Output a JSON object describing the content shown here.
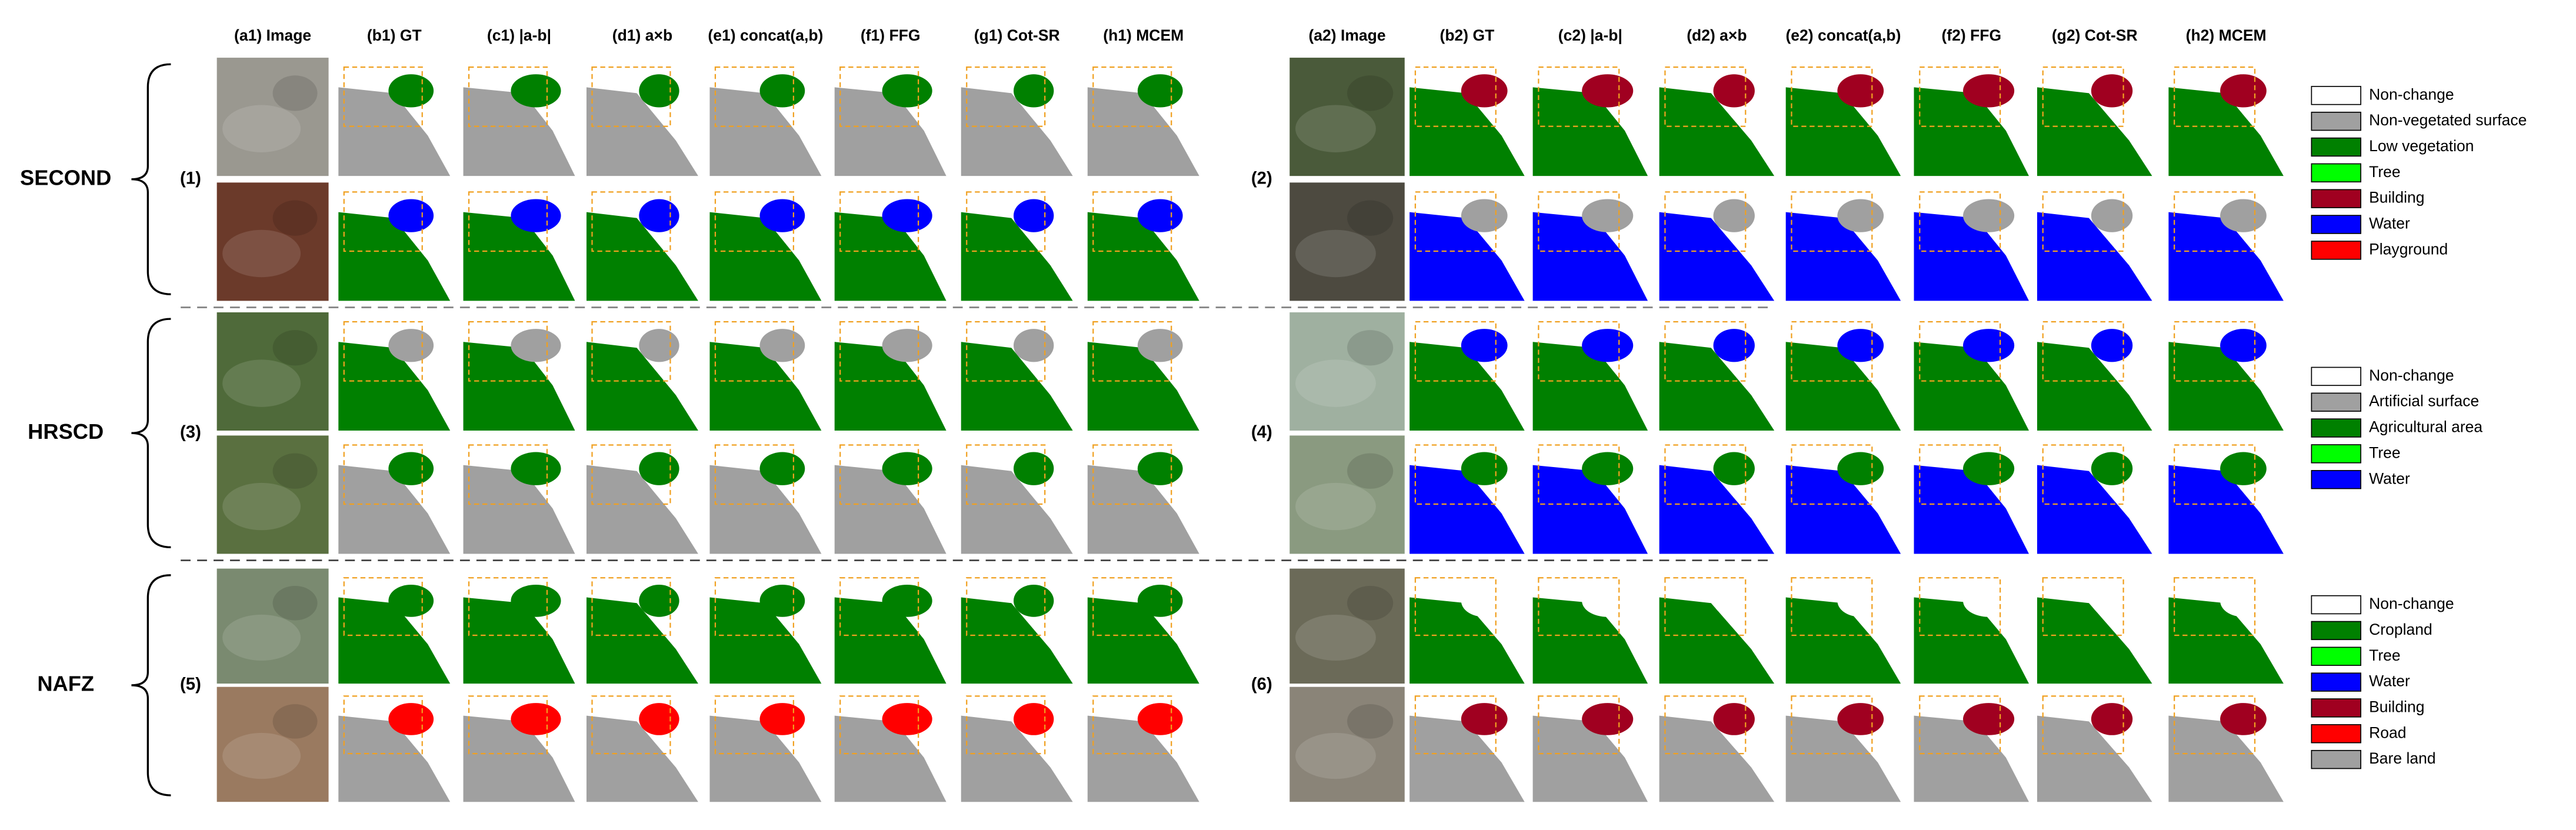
{
  "columns_left": [
    "(a1) Image",
    "(b1) GT",
    "(c1) |a-b|",
    "(d1) a×b",
    "(e1) concat(a,b)",
    "(f1) FFG",
    "(g1) Cot-SR",
    "(h1) MCEM"
  ],
  "columns_right": [
    "(a2) Image",
    "(b2) GT",
    "(c2) |a-b|",
    "(d2) a×b",
    "(e2) concat(a,b)",
    "(f2) FFG",
    "(g2) Cot-SR",
    "(h2) MCEM"
  ],
  "datasets": [
    {
      "name": "SECOND",
      "rows": [
        "(1)",
        "(2)"
      ]
    },
    {
      "name": "HRSCD",
      "rows": [
        "(3)",
        "(4)"
      ]
    },
    {
      "name": "NAFZ",
      "rows": [
        "(5)",
        "(6)"
      ]
    }
  ],
  "legends": [
    [
      {
        "label": "Non-change",
        "color": "#ffffff"
      },
      {
        "label": "Non-vegetated surface",
        "color": "#a0a0a0"
      },
      {
        "label": "Low vegetation",
        "color": "#008000"
      },
      {
        "label": "Tree",
        "color": "#00ff00"
      },
      {
        "label": "Building",
        "color": "#a00020"
      },
      {
        "label": "Water",
        "color": "#0000ff"
      },
      {
        "label": "Playground",
        "color": "#ff0000"
      }
    ],
    [
      {
        "label": "Non-change",
        "color": "#ffffff"
      },
      {
        "label": "Artificial surface",
        "color": "#a0a0a0"
      },
      {
        "label": "Agricultural area",
        "color": "#008000"
      },
      {
        "label": "Tree",
        "color": "#00ff00"
      },
      {
        "label": "Water",
        "color": "#0000ff"
      }
    ],
    [
      {
        "label": "Non-change",
        "color": "#ffffff"
      },
      {
        "label": "Cropland",
        "color": "#008000"
      },
      {
        "label": "Tree",
        "color": "#00ff00"
      },
      {
        "label": "Water",
        "color": "#0000ff"
      },
      {
        "label": "Building",
        "color": "#a00020"
      },
      {
        "label": "Road",
        "color": "#ff0000"
      },
      {
        "label": "Bare land",
        "color": "#a0a0a0"
      }
    ]
  ]
}
